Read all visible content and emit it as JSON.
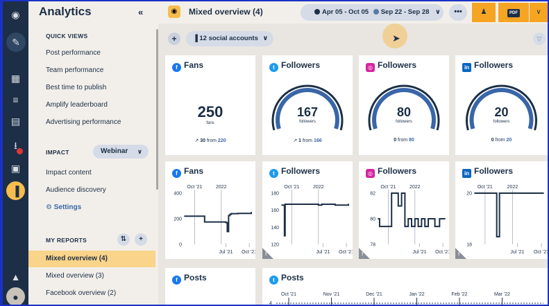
{
  "sidebar": {
    "title": "Analytics",
    "quick_views_heading": "QUICK VIEWS",
    "quick_views": [
      "Post performance",
      "Team performance",
      "Best time to publish",
      "Amplify leaderboard",
      "Advertising performance"
    ],
    "impact_heading": "IMPACT",
    "webinar_label": "Webinar",
    "impact_items": [
      "Impact content",
      "Audience discovery"
    ],
    "settings_label": "Settings",
    "my_reports_heading": "MY REPORTS",
    "reports": [
      "Mixed overview (4)",
      "Mixed overview (3)",
      "Facebook overview (2)"
    ]
  },
  "header": {
    "title": "Mixed overview (4)",
    "date_range_primary": "Apr 05 - Oct 05",
    "date_range_compare": "Sep 22 - Sep 28",
    "pdf_label": "PDF"
  },
  "subbar": {
    "accounts_label": "12 social accounts"
  },
  "colors": {
    "accent": "#f6a523",
    "navy": "#1c2f46",
    "selected": "#f9d48a",
    "gauge": "#3966a8"
  },
  "stat_cards": [
    {
      "network": "facebook",
      "title": "Fans",
      "value": "250",
      "unit": "fans",
      "delta": "30",
      "from_word": "from",
      "from_value": "220",
      "trend": "↗"
    },
    {
      "network": "twitter",
      "title": "Followers",
      "value": "167",
      "unit": "followers",
      "delta": "1",
      "from_word": "from",
      "from_value": "166",
      "trend": "↗",
      "gauge_fraction": 1.0
    },
    {
      "network": "instagram",
      "title": "Followers",
      "value": "80",
      "unit": "followers",
      "delta": "0",
      "from_word": "from",
      "from_value": "80",
      "trend": "",
      "gauge_fraction": 1.0
    },
    {
      "network": "linkedin",
      "title": "Followers",
      "value": "20",
      "unit": "followers",
      "delta": "0",
      "from_word": "from",
      "from_value": "20",
      "trend": "",
      "gauge_fraction": 1.0
    }
  ],
  "chart_cards": [
    {
      "network": "facebook",
      "title": "Fans"
    },
    {
      "network": "twitter",
      "title": "Followers"
    },
    {
      "network": "instagram",
      "title": "Followers"
    },
    {
      "network": "linkedin",
      "title": "Followers"
    }
  ],
  "post_cards": [
    {
      "network": "facebook",
      "title": "Posts"
    },
    {
      "network": "twitter",
      "title": "Posts"
    }
  ],
  "chart_data": [
    {
      "type": "line",
      "title": "Fans",
      "top_ticks": [
        "Oct '21",
        "2022"
      ],
      "bottom_ticks": [
        "Jul '21",
        "Oct '21"
      ],
      "yticks": [
        "400",
        "200",
        "0"
      ],
      "ylim": [
        0,
        400
      ],
      "x": [
        0.0,
        0.02,
        0.3,
        0.6,
        0.62,
        0.64,
        0.66,
        0.68,
        0.7,
        0.71,
        0.72,
        0.8,
        0.9,
        1.0
      ],
      "values": [
        220,
        220,
        175,
        175,
        170,
        100,
        225,
        235,
        240,
        240,
        240,
        242,
        242,
        250
      ]
    },
    {
      "type": "line",
      "title": "Followers",
      "top_ticks": [
        "Oct '21",
        "2022"
      ],
      "bottom_ticks": [
        "Jul '21",
        "Oct '21"
      ],
      "yticks": [
        "180",
        "160",
        "140",
        "120"
      ],
      "ylim": [
        120,
        180
      ],
      "x": [
        0.0,
        0.02,
        0.04,
        0.05,
        0.1,
        0.3,
        0.45,
        0.5,
        0.55,
        0.6,
        0.7,
        0.8,
        0.9,
        1.0
      ],
      "values": [
        166,
        166,
        130,
        167,
        167,
        167,
        167,
        167,
        166,
        167,
        167,
        166,
        166,
        167
      ]
    },
    {
      "type": "line",
      "title": "Followers",
      "top_ticks": [
        "Oct '21",
        "2022"
      ],
      "bottom_ticks": [
        "Jul '21",
        "Oct '21"
      ],
      "yticks": [
        "82",
        "80",
        "78"
      ],
      "ylim": [
        78,
        82
      ],
      "x": [
        0.0,
        0.02,
        0.2,
        0.22,
        0.3,
        0.35,
        0.4,
        0.45,
        0.5,
        0.55,
        0.6,
        0.65,
        0.7,
        0.75,
        0.8,
        0.85,
        0.9,
        0.92,
        1.0
      ],
      "values": [
        80,
        79.4,
        82,
        82,
        81,
        82,
        79.4,
        80,
        79.4,
        80,
        79.4,
        80,
        79.4,
        80,
        80,
        79.4,
        79.4,
        80,
        80
      ]
    },
    {
      "type": "line",
      "title": "Followers",
      "top_ticks": [
        "Oct '21",
        "2022"
      ],
      "bottom_ticks": [
        "Jul '21",
        "Oct '21"
      ],
      "yticks": [
        "20",
        "18"
      ],
      "ylim": [
        18,
        20
      ],
      "x": [
        0.0,
        0.3,
        0.32,
        0.34,
        0.36,
        1.0
      ],
      "values": [
        20,
        20,
        18.3,
        18.3,
        20,
        20
      ]
    },
    {
      "type": "line",
      "title": "Posts",
      "top_ticks": [
        "Oct '21",
        "Nov '21",
        "Dec '21",
        "Jan '22",
        "Feb '22",
        "Mar '22"
      ],
      "yticks": [
        "4"
      ],
      "ylim": [
        0,
        4
      ]
    }
  ]
}
